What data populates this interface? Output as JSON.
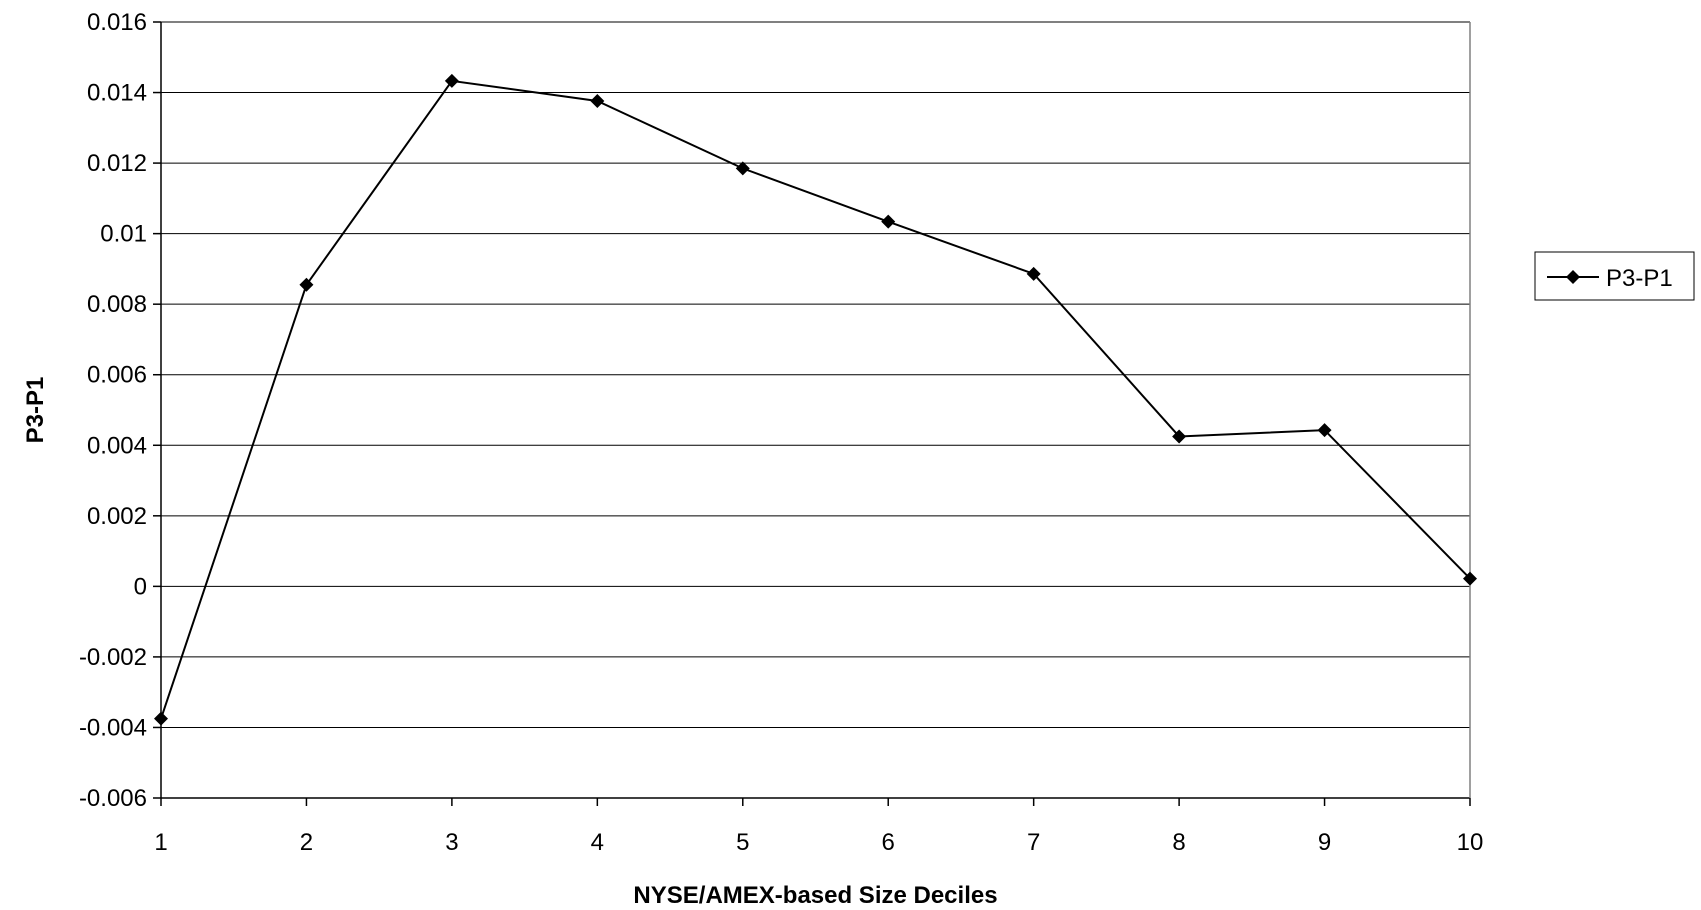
{
  "chart_data": {
    "type": "line",
    "title": "",
    "xlabel": "NYSE/AMEX-based Size Deciles",
    "ylabel": "P3-P1",
    "categories": [
      "1",
      "2",
      "3",
      "4",
      "5",
      "6",
      "7",
      "8",
      "9",
      "10"
    ],
    "series": [
      {
        "name": "P3-P1",
        "values": [
          -0.00375,
          0.00855,
          0.01433,
          0.01376,
          0.01185,
          0.01034,
          0.00886,
          0.00425,
          0.00443,
          0.00022
        ],
        "color": "#000000",
        "marker": "diamond"
      }
    ],
    "ylim": [
      -0.006,
      0.016
    ],
    "yticks": [
      "-0.006",
      "-0.004",
      "-0.002",
      "0",
      "0.002",
      "0.004",
      "0.006",
      "0.008",
      "0.01",
      "0.012",
      "0.014",
      "0.016"
    ],
    "grid": true,
    "legend_position": "right"
  }
}
